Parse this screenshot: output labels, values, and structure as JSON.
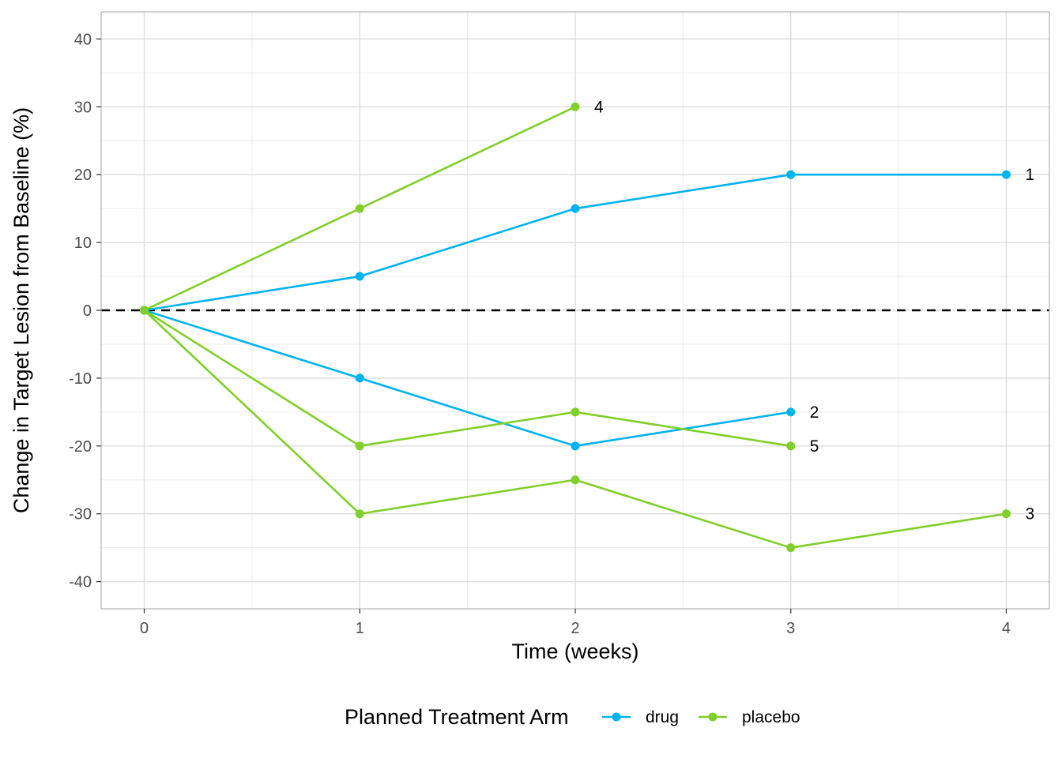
{
  "chart_data": {
    "type": "line",
    "title": "",
    "xlabel": "Time (weeks)",
    "ylabel": "Change in Target Lesion from Baseline (%)",
    "xlim": [
      -0.2,
      4.2
    ],
    "ylim": [
      -44,
      44
    ],
    "x_ticks": [
      0,
      1,
      2,
      3,
      4
    ],
    "y_ticks": [
      -40,
      -30,
      -20,
      -10,
      0,
      10,
      20,
      30,
      40
    ],
    "grid": true,
    "reference_line": {
      "y": 0,
      "style": "dashed",
      "color": "#000000"
    },
    "legend": {
      "title": "Planned Treatment Arm",
      "position": "bottom",
      "entries": [
        {
          "label": "drug",
          "color": "#00B3F0"
        },
        {
          "label": "placebo",
          "color": "#80CF2A"
        }
      ]
    },
    "series": [
      {
        "name": "1",
        "arm": "drug",
        "x": [
          0,
          1,
          2,
          3,
          4
        ],
        "y": [
          0,
          5,
          15,
          20,
          20
        ]
      },
      {
        "name": "2",
        "arm": "drug",
        "x": [
          0,
          1,
          2,
          3
        ],
        "y": [
          0,
          -10,
          -20,
          -15
        ]
      },
      {
        "name": "3",
        "arm": "placebo",
        "x": [
          0,
          1,
          2,
          3,
          4
        ],
        "y": [
          0,
          -30,
          -25,
          -35,
          -30
        ]
      },
      {
        "name": "4",
        "arm": "placebo",
        "x": [
          0,
          1,
          2
        ],
        "y": [
          0,
          15,
          30
        ]
      },
      {
        "name": "5",
        "arm": "placebo",
        "x": [
          0,
          1,
          2,
          3
        ],
        "y": [
          0,
          -20,
          -15,
          -20
        ]
      }
    ]
  }
}
